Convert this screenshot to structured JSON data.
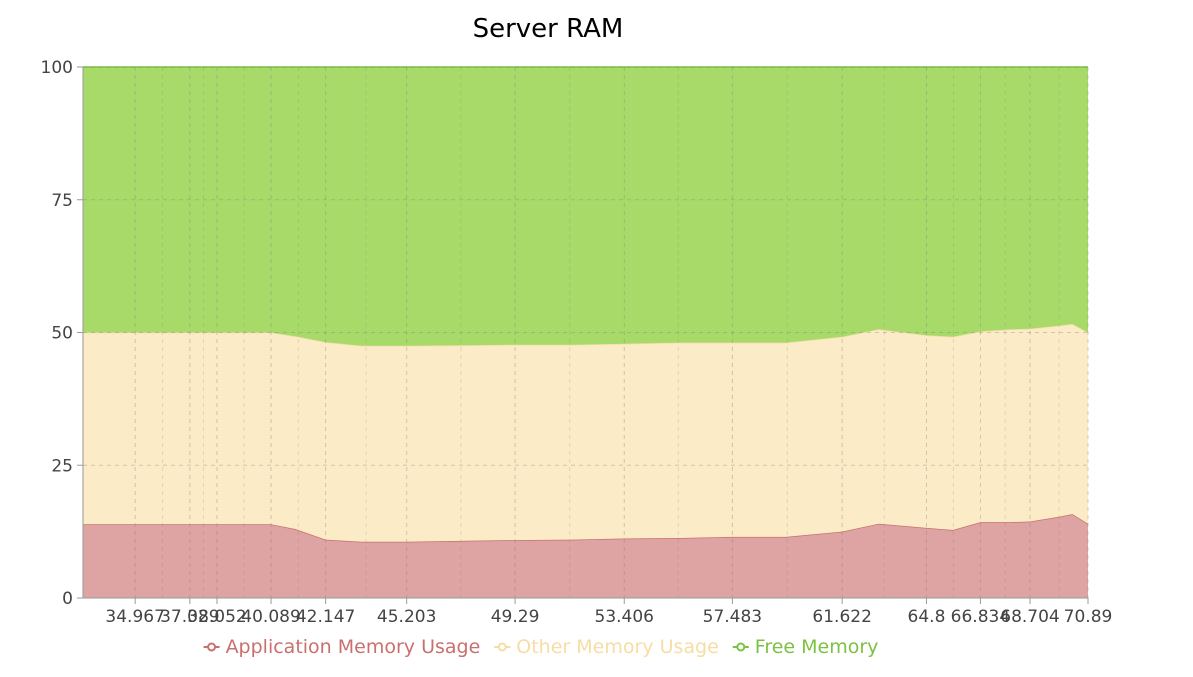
{
  "chart_data": {
    "type": "area",
    "stacked": true,
    "title": "Server RAM",
    "xlabel": "",
    "ylabel": "",
    "ylim": [
      0,
      100
    ],
    "yticks": [
      "0",
      "25",
      "50",
      "75",
      "100"
    ],
    "grid": true,
    "legend_position": "bottom",
    "x": [
      33.0,
      34.967,
      36.5,
      37.029,
      38.052,
      39.5,
      40.089,
      41.0,
      42.147,
      43.5,
      45.203,
      47.5,
      49.29,
      51.5,
      53.406,
      55.5,
      57.483,
      59.5,
      61.622,
      63.0,
      64.8,
      65.8,
      66.834,
      68.0,
      68.704,
      69.8,
      70.3,
      70.89
    ],
    "xtick_labels": [
      "34.967",
      "37.029",
      "38.052",
      "40.089",
      "42.147",
      "45.203",
      "49.29",
      "53.406",
      "57.483",
      "61.622",
      "64.8",
      "66.834",
      "68.704",
      "70.89"
    ],
    "series": [
      {
        "name": "Application Memory Usage",
        "color": "#c9706f",
        "fill": "#dea3a3",
        "values": [
          13.9,
          13.9,
          13.9,
          13.9,
          13.9,
          13.9,
          13.9,
          13.0,
          11.0,
          10.6,
          10.6,
          10.8,
          10.9,
          11.0,
          11.2,
          11.3,
          11.5,
          11.5,
          12.5,
          14.0,
          13.2,
          12.8,
          14.3,
          14.3,
          14.4,
          15.3,
          15.8,
          14.0
        ],
        "cumulative": [
          13.9,
          13.9,
          13.9,
          13.9,
          13.9,
          13.9,
          13.9,
          13.0,
          11.0,
          10.6,
          10.6,
          10.8,
          10.9,
          11.0,
          11.2,
          11.3,
          11.5,
          11.5,
          12.5,
          14.0,
          13.2,
          12.8,
          14.3,
          14.3,
          14.4,
          15.3,
          15.8,
          14.0
        ]
      },
      {
        "name": "Other Memory Usage",
        "color": "#f7dda5",
        "fill": "#fbebc6",
        "values": [
          36.1,
          36.1,
          36.1,
          36.1,
          36.1,
          36.1,
          36.1,
          36.3,
          37.2,
          36.9,
          36.9,
          36.8,
          36.8,
          36.7,
          36.7,
          36.8,
          36.6,
          36.6,
          36.7,
          36.6,
          36.3,
          36.4,
          35.9,
          36.3,
          36.3,
          36.0,
          35.8,
          36.0
        ],
        "cumulative": [
          50.0,
          50.0,
          50.0,
          50.0,
          50.0,
          50.0,
          50.0,
          49.3,
          48.2,
          47.5,
          47.5,
          47.6,
          47.7,
          47.7,
          47.9,
          48.1,
          48.1,
          48.1,
          49.2,
          50.6,
          49.5,
          49.2,
          50.2,
          50.6,
          50.7,
          51.3,
          51.6,
          50.0
        ]
      },
      {
        "name": "Free Memory",
        "color": "#7cc242",
        "fill": "#a8da6a",
        "values": [
          50.0,
          50.0,
          50.0,
          50.0,
          50.0,
          50.0,
          50.0,
          50.7,
          51.8,
          52.5,
          52.5,
          52.4,
          52.3,
          52.3,
          52.1,
          51.9,
          51.9,
          51.9,
          50.8,
          49.4,
          50.5,
          50.8,
          49.8,
          49.4,
          49.3,
          48.7,
          48.4,
          50.0
        ],
        "cumulative": [
          100,
          100,
          100,
          100,
          100,
          100,
          100,
          100,
          100,
          100,
          100,
          100,
          100,
          100,
          100,
          100,
          100,
          100,
          100,
          100,
          100,
          100,
          100,
          100,
          100,
          100,
          100,
          100
        ]
      }
    ]
  },
  "legend": {
    "items": [
      {
        "label": "Application Memory Usage",
        "color": "#c9706f",
        "icon": "circle-line-marker-icon"
      },
      {
        "label": "Other Memory Usage",
        "color": "#f7dda5",
        "icon": "circle-line-marker-icon"
      },
      {
        "label": "Free Memory",
        "color": "#7cc242",
        "icon": "circle-line-marker-icon"
      }
    ]
  }
}
